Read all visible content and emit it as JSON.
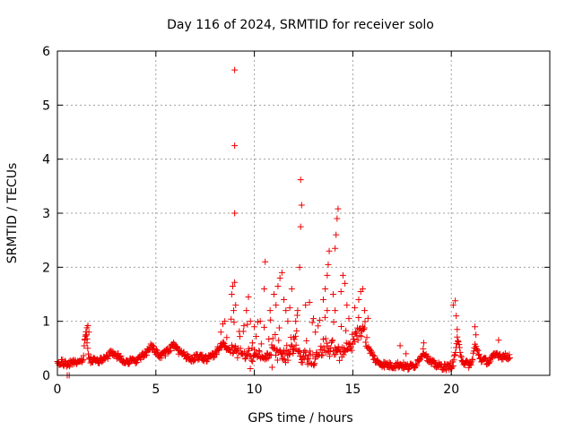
{
  "chart_data": {
    "type": "scatter",
    "title": "Day 116 of 2024, SRMTID for receiver solo",
    "xlabel": "GPS time / hours",
    "ylabel": "SRMTID / TECUs",
    "xlim": [
      0,
      25
    ],
    "ylim": [
      0,
      6
    ],
    "xticks": [
      0,
      5,
      10,
      15,
      20
    ],
    "yticks": [
      0,
      1,
      2,
      3,
      4,
      5,
      6
    ],
    "xtick_labels": [
      "0",
      "5",
      "10",
      "15",
      "20"
    ],
    "ytick_labels": [
      "0",
      "1",
      "2",
      "3",
      "4",
      "5",
      "6"
    ],
    "grid": true,
    "marker": "plus",
    "color": "#ee0000",
    "series": [
      {
        "name": "SRMTID",
        "baseline": [
          [
            0.0,
            0.25
          ],
          [
            0.5,
            0.22
          ],
          [
            1.0,
            0.25
          ],
          [
            1.3,
            0.3
          ],
          [
            1.45,
            0.85
          ],
          [
            1.6,
            0.3
          ],
          [
            2.0,
            0.25
          ],
          [
            2.5,
            0.35
          ],
          [
            2.8,
            0.42
          ],
          [
            3.2,
            0.32
          ],
          [
            3.6,
            0.25
          ],
          [
            4.0,
            0.28
          ],
          [
            4.5,
            0.4
          ],
          [
            4.8,
            0.55
          ],
          [
            5.2,
            0.35
          ],
          [
            5.6,
            0.45
          ],
          [
            5.9,
            0.55
          ],
          [
            6.3,
            0.4
          ],
          [
            6.8,
            0.3
          ],
          [
            7.2,
            0.35
          ],
          [
            7.6,
            0.3
          ],
          [
            8.0,
            0.4
          ],
          [
            8.4,
            0.6
          ],
          [
            8.7,
            0.45
          ],
          [
            9.0,
            0.5
          ],
          [
            9.5,
            0.35
          ],
          [
            10.0,
            0.4
          ],
          [
            10.5,
            0.3
          ],
          [
            11.0,
            0.45
          ],
          [
            11.5,
            0.4
          ],
          [
            12.0,
            0.5
          ],
          [
            12.5,
            0.35
          ],
          [
            13.0,
            0.3
          ],
          [
            13.5,
            0.5
          ],
          [
            14.0,
            0.45
          ],
          [
            14.5,
            0.4
          ],
          [
            15.0,
            0.7
          ],
          [
            15.5,
            0.9
          ],
          [
            15.8,
            0.5
          ],
          [
            16.2,
            0.25
          ],
          [
            16.6,
            0.2
          ],
          [
            17.0,
            0.18
          ],
          [
            17.4,
            0.2
          ],
          [
            17.8,
            0.15
          ],
          [
            18.2,
            0.2
          ],
          [
            18.6,
            0.45
          ],
          [
            18.9,
            0.25
          ],
          [
            19.3,
            0.18
          ],
          [
            19.8,
            0.15
          ],
          [
            20.1,
            0.2
          ],
          [
            20.3,
            0.65
          ],
          [
            20.6,
            0.25
          ],
          [
            21.0,
            0.18
          ],
          [
            21.2,
            0.55
          ],
          [
            21.5,
            0.3
          ],
          [
            21.9,
            0.25
          ],
          [
            22.3,
            0.4
          ],
          [
            22.6,
            0.35
          ],
          [
            23.0,
            0.35
          ]
        ],
        "points": [
          [
            0.5,
            0.0
          ],
          [
            0.6,
            0.0
          ],
          [
            1.4,
            0.65
          ],
          [
            1.45,
            0.75
          ],
          [
            1.5,
            0.88
          ],
          [
            1.55,
            0.92
          ],
          [
            1.6,
            0.8
          ],
          [
            1.5,
            0.6
          ],
          [
            8.3,
            0.8
          ],
          [
            8.4,
            0.95
          ],
          [
            8.5,
            1.0
          ],
          [
            8.6,
            0.7
          ],
          [
            8.85,
            1.5
          ],
          [
            8.9,
            1.65
          ],
          [
            9.0,
            1.72
          ],
          [
            8.95,
            1.2
          ],
          [
            9.05,
            1.3
          ],
          [
            9.0,
            3.0
          ],
          [
            9.0,
            4.25
          ],
          [
            9.0,
            5.65
          ],
          [
            9.6,
            1.2
          ],
          [
            9.7,
            1.45
          ],
          [
            9.8,
            1.0
          ],
          [
            9.9,
            0.6
          ],
          [
            10.0,
            0.9
          ],
          [
            10.3,
            1.0
          ],
          [
            10.5,
            1.6
          ],
          [
            10.55,
            2.1
          ],
          [
            10.8,
            1.2
          ],
          [
            10.9,
            0.15
          ],
          [
            11.0,
            1.5
          ],
          [
            11.1,
            1.3
          ],
          [
            11.2,
            1.65
          ],
          [
            11.3,
            1.8
          ],
          [
            11.4,
            1.9
          ],
          [
            11.5,
            1.4
          ],
          [
            11.6,
            1.2
          ],
          [
            11.7,
            1.0
          ],
          [
            11.8,
            1.25
          ],
          [
            11.9,
            1.6
          ],
          [
            12.0,
            0.7
          ],
          [
            12.1,
            1.0
          ],
          [
            12.2,
            1.2
          ],
          [
            12.3,
            2.0
          ],
          [
            12.35,
            2.75
          ],
          [
            12.4,
            3.15
          ],
          [
            12.35,
            3.62
          ],
          [
            12.6,
            1.3
          ],
          [
            12.8,
            1.35
          ],
          [
            13.0,
            1.05
          ],
          [
            13.1,
            0.8
          ],
          [
            13.5,
            1.4
          ],
          [
            13.6,
            1.6
          ],
          [
            13.7,
            1.85
          ],
          [
            13.75,
            2.05
          ],
          [
            13.8,
            2.3
          ],
          [
            13.7,
            1.2
          ],
          [
            14.0,
            1.5
          ],
          [
            14.1,
            2.35
          ],
          [
            14.15,
            2.6
          ],
          [
            14.2,
            2.9
          ],
          [
            14.25,
            3.08
          ],
          [
            14.1,
            1.2
          ],
          [
            14.4,
            1.55
          ],
          [
            14.5,
            1.85
          ],
          [
            14.6,
            1.7
          ],
          [
            14.7,
            1.3
          ],
          [
            14.8,
            1.05
          ],
          [
            15.1,
            1.25
          ],
          [
            15.3,
            1.4
          ],
          [
            15.4,
            1.55
          ],
          [
            15.5,
            1.6
          ],
          [
            15.6,
            1.2
          ],
          [
            17.4,
            0.55
          ],
          [
            17.7,
            0.4
          ],
          [
            18.6,
            0.6
          ],
          [
            20.1,
            1.3
          ],
          [
            20.2,
            1.38
          ],
          [
            20.25,
            1.1
          ],
          [
            20.3,
            0.85
          ],
          [
            21.2,
            0.9
          ],
          [
            21.25,
            0.75
          ],
          [
            22.4,
            0.65
          ]
        ]
      }
    ]
  }
}
